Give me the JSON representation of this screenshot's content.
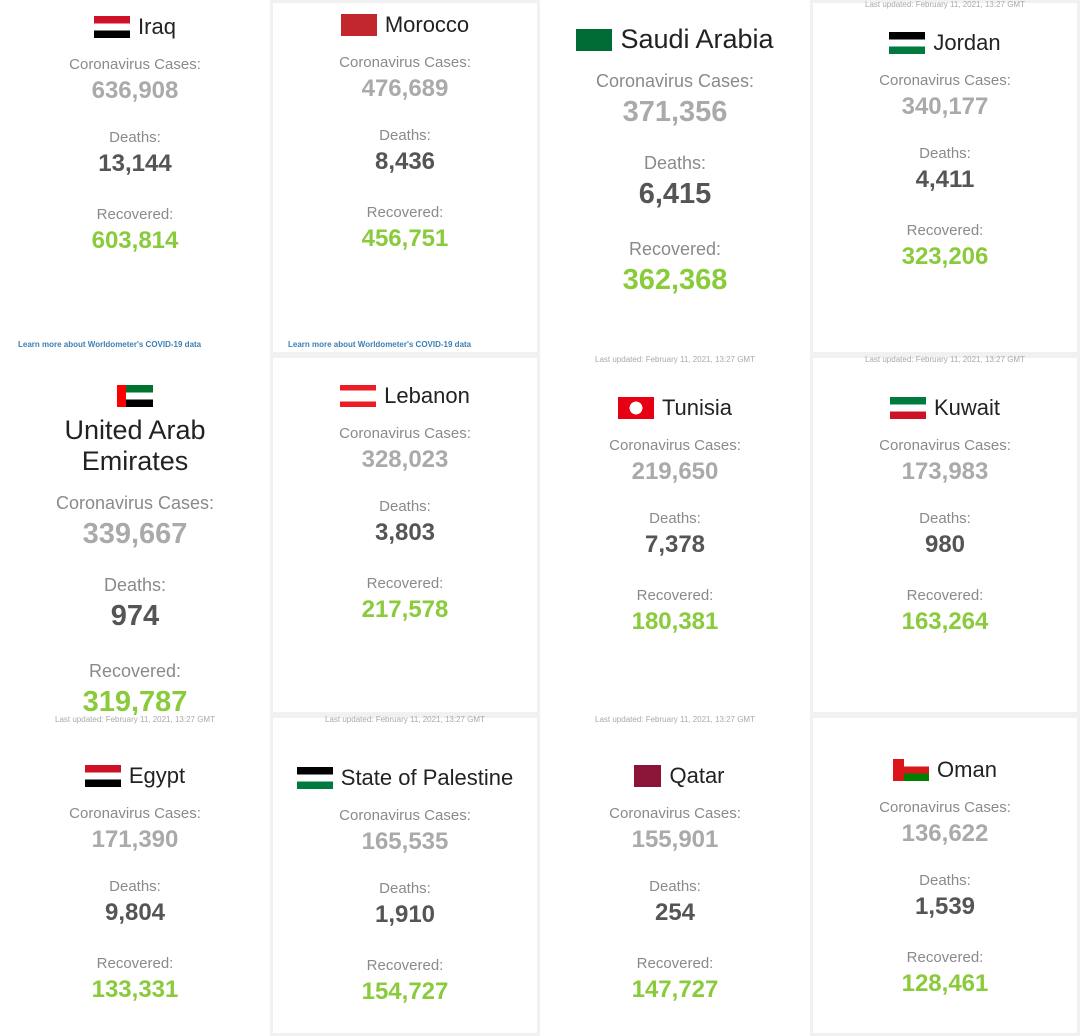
{
  "labels": {
    "cases": "Coronavirus Cases:",
    "deaths": "Deaths:",
    "recovered": "Recovered:"
  },
  "last_updated": "Last updated: February 11, 2021, 13:27 GMT",
  "learn_more": "Learn more about Worldometer's COVID-19 data",
  "colors": {
    "recovered": "#8acb3c",
    "cases": "#aaaaaa",
    "deaths": "#555555",
    "link": "#3b7fb5"
  },
  "countries": [
    {
      "name": "Iraq",
      "cases": "636,908",
      "deaths": "13,144",
      "recovered": "603,814"
    },
    {
      "name": "Morocco",
      "cases": "476,689",
      "deaths": "8,436",
      "recovered": "456,751"
    },
    {
      "name": "Saudi Arabia",
      "cases": "371,356",
      "deaths": "6,415",
      "recovered": "362,368"
    },
    {
      "name": "Jordan",
      "cases": "340,177",
      "deaths": "4,411",
      "recovered": "323,206"
    },
    {
      "name": "United Arab Emirates",
      "cases": "339,667",
      "deaths": "974",
      "recovered": "319,787"
    },
    {
      "name": "Lebanon",
      "cases": "328,023",
      "deaths": "3,803",
      "recovered": "217,578"
    },
    {
      "name": "Tunisia",
      "cases": "219,650",
      "deaths": "7,378",
      "recovered": "180,381"
    },
    {
      "name": "Kuwait",
      "cases": "173,983",
      "deaths": "980",
      "recovered": "163,264"
    },
    {
      "name": "Egypt",
      "cases": "171,390",
      "deaths": "9,804",
      "recovered": "133,331"
    },
    {
      "name": "State of Palestine",
      "cases": "165,535",
      "deaths": "1,910",
      "recovered": "154,727"
    },
    {
      "name": "Qatar",
      "cases": "155,901",
      "deaths": "254",
      "recovered": "147,727"
    },
    {
      "name": "Oman",
      "cases": "136,622",
      "deaths": "1,539",
      "recovered": "128,461"
    }
  ]
}
